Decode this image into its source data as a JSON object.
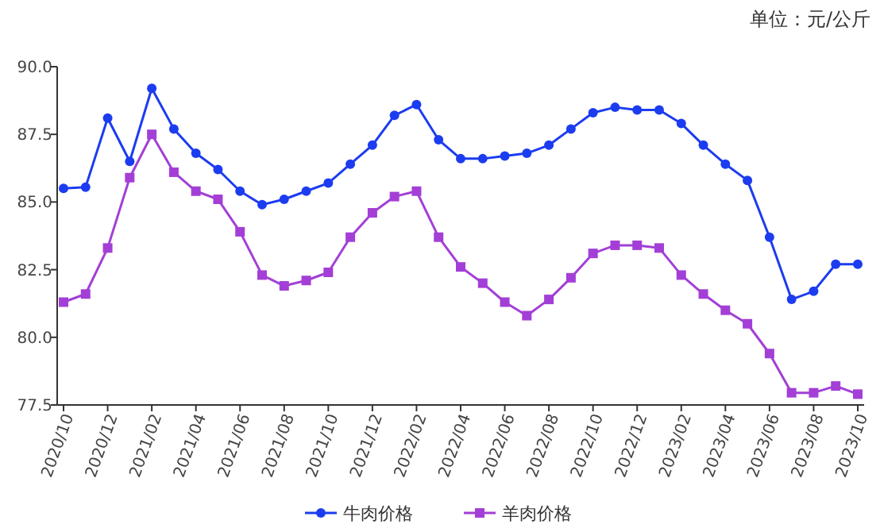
{
  "chart_data": {
    "type": "line",
    "annotations": [
      "单位：元/公斤"
    ],
    "categories": [
      "2020/10",
      null,
      "2020/12",
      null,
      "2021/02",
      null,
      "2021/04",
      null,
      "2021/06",
      null,
      "2021/08",
      null,
      "2021/10",
      null,
      "2021/12",
      null,
      "2022/02",
      null,
      "2022/04",
      null,
      "2022/06",
      null,
      "2022/08",
      null,
      "2022/10",
      null,
      "2022/12",
      null,
      "2023/02",
      null,
      "2023/04",
      null,
      "2023/06",
      null,
      "2023/08",
      null,
      "2023/10"
    ],
    "series": [
      {
        "name": "牛肉价格",
        "color": "#1c3cf0",
        "marker": "circle",
        "values": [
          85.5,
          85.55,
          88.1,
          86.5,
          89.2,
          87.7,
          86.8,
          86.2,
          85.4,
          84.9,
          85.1,
          85.4,
          85.7,
          86.4,
          87.1,
          88.2,
          88.6,
          87.3,
          86.6,
          86.6,
          86.7,
          86.8,
          87.1,
          87.7,
          88.3,
          88.5,
          88.4,
          88.4,
          87.9,
          87.1,
          86.4,
          85.8,
          83.7,
          81.4,
          81.7,
          82.7,
          82.7
        ]
      },
      {
        "name": "羊肉价格",
        "color": "#a33fd6",
        "marker": "square",
        "values": [
          81.3,
          81.6,
          83.3,
          85.9,
          87.5,
          86.1,
          85.4,
          85.1,
          83.9,
          82.3,
          81.9,
          82.1,
          82.4,
          83.7,
          84.6,
          85.2,
          85.4,
          83.7,
          82.6,
          82.0,
          81.3,
          80.8,
          81.4,
          82.2,
          83.1,
          83.4,
          83.4,
          83.3,
          82.3,
          81.6,
          81.0,
          80.5,
          79.4,
          77.95,
          77.95,
          78.2,
          77.9
        ]
      }
    ],
    "ylim": [
      77.5,
      90
    ],
    "yticks": [
      {
        "value": 77.5,
        "label": "77.5"
      },
      {
        "value": 80,
        "label": "80.0"
      },
      {
        "value": 82.5,
        "label": "82.5"
      },
      {
        "value": 85,
        "label": "85.0"
      },
      {
        "value": 87.5,
        "label": "87.5"
      },
      {
        "value": 90,
        "label": "90.0"
      }
    ],
    "grid": false,
    "legend": "bottom",
    "line_style": "solid"
  }
}
